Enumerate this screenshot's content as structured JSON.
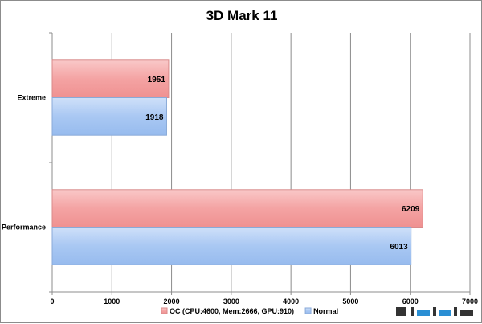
{
  "chart_data": {
    "type": "bar",
    "orientation": "horizontal",
    "title": "3D Mark 11",
    "categories": [
      "Extreme",
      "Performance"
    ],
    "series": [
      {
        "name": "OC (CPU:4600, Mem:2666, GPU:910)",
        "values": [
          1951,
          6209
        ],
        "color": "#f4a3a3"
      },
      {
        "name": "Normal",
        "values": [
          1918,
          6013
        ],
        "color": "#a9c8f3"
      }
    ],
    "xlim": [
      0,
      7000
    ],
    "xticks": [
      0,
      1000,
      2000,
      3000,
      4000,
      5000,
      6000,
      7000
    ],
    "grid": true,
    "legend_position": "bottom"
  }
}
